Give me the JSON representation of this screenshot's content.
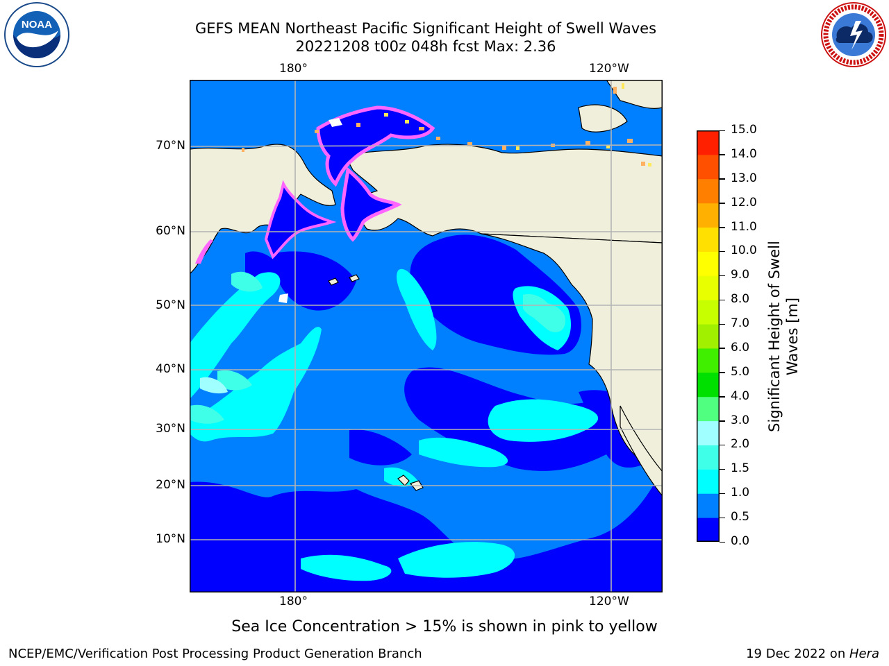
{
  "title": {
    "line1": "GEFS MEAN Northeast Pacific Significant Height of Swell Waves",
    "line2": "20221208 t00z 048h fcst   Max: 2.36"
  },
  "map": {
    "lon_top": [
      "180°",
      "120°W"
    ],
    "lon_bottom": [
      "180°",
      "120°W"
    ],
    "lat": [
      "70°N",
      "60°N",
      "50°N",
      "40°N",
      "30°N",
      "20°N",
      "10°N"
    ],
    "colors": {
      "land": "#efefdc",
      "sea_ice_pink": "#ff66ff",
      "sea_ice_orange": "#ffb060",
      "sea_ice_yellow": "#ffe85a"
    }
  },
  "colorbar": {
    "label": "Significant Height of Swell Waves [m]",
    "ticks": [
      "0.0",
      "0.5",
      "1.0",
      "1.5",
      "2.0",
      "3.0",
      "4.0",
      "5.0",
      "6.0",
      "7.0",
      "8.0",
      "9.0",
      "10.0",
      "11.0",
      "12.0",
      "13.0",
      "14.0",
      "15.0"
    ],
    "colors": [
      "#0000ff",
      "#0080ff",
      "#00ffff",
      "#40ffe8",
      "#a0ffff",
      "#50ff80",
      "#00e000",
      "#40ee00",
      "#a0f000",
      "#c8ff00",
      "#e8ff00",
      "#ffff00",
      "#ffe000",
      "#ffb000",
      "#ff8000",
      "#ff5000",
      "#ff2000"
    ]
  },
  "caption": "Sea Ice Concentration > 15% is shown in pink to yellow",
  "footer": {
    "left": "NCEP/EMC/Verification Post Processing Product Generation Branch",
    "right_date": "19 Dec 2022 on ",
    "right_machine": "Hera"
  },
  "logos": {
    "noaa": "NOAA",
    "nws_ring": "NATIONAL WEATHER SERVICE",
    "noaa_ring": "NATIONAL OCEANIC AND ATMOSPHERIC ADMINISTRATION · U.S. DEPARTMENT OF COMMERCE"
  }
}
